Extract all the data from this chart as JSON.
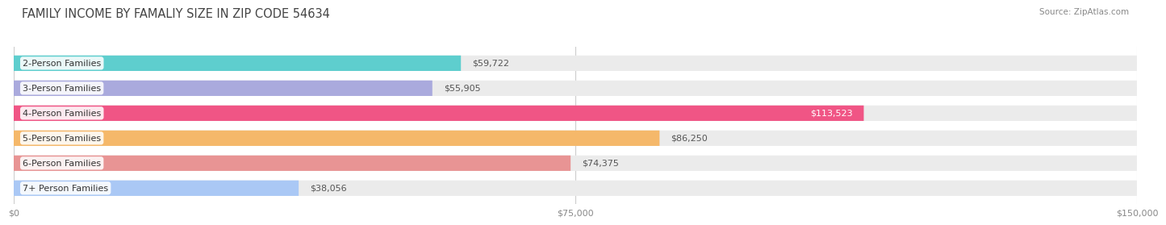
{
  "title": "FAMILY INCOME BY FAMALIY SIZE IN ZIP CODE 54634",
  "source": "Source: ZipAtlas.com",
  "categories": [
    "2-Person Families",
    "3-Person Families",
    "4-Person Families",
    "5-Person Families",
    "6-Person Families",
    "7+ Person Families"
  ],
  "values": [
    59722,
    55905,
    113523,
    86250,
    74375,
    38056
  ],
  "labels": [
    "$59,722",
    "$55,905",
    "$113,523",
    "$86,250",
    "$74,375",
    "$38,056"
  ],
  "colors": [
    "#5ecece",
    "#aaaadd",
    "#f05585",
    "#f5b86a",
    "#e89494",
    "#aac8f5"
  ],
  "bar_bg_color": "#ebebeb",
  "bg_color": "#ffffff",
  "xmax": 150000,
  "xticklabels": [
    "$0",
    "$75,000",
    "$150,000"
  ],
  "title_fontsize": 10.5,
  "label_fontsize": 8,
  "bar_label_fontsize": 8,
  "source_fontsize": 7.5
}
